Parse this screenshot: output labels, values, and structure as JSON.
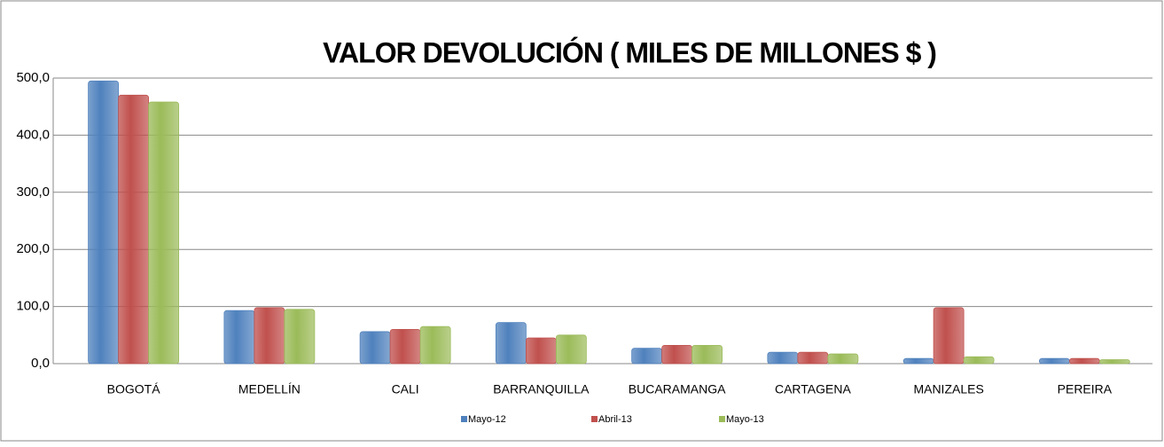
{
  "chart_data": {
    "type": "bar",
    "title": "VALOR DEVOLUCIÓN ( MILES DE MILLONES $ )",
    "categories": [
      "BOGOTÁ",
      "MEDELLÍN",
      "CALI",
      "BARRANQUILLA",
      "BUCARAMANGA",
      "CARTAGENA",
      "MANIZALES",
      "PEREIRA"
    ],
    "series": [
      {
        "name": "Mayo-12",
        "color": "#4f81bd",
        "values": [
          495,
          93,
          56,
          72,
          27,
          20,
          9,
          9
        ]
      },
      {
        "name": "Abril-13",
        "color": "#c0504d",
        "values": [
          470,
          98,
          60,
          45,
          32,
          20,
          98,
          9
        ]
      },
      {
        "name": "Mayo-13",
        "color": "#9bbb59",
        "values": [
          458,
          95,
          65,
          50,
          32,
          17,
          12,
          7
        ]
      }
    ],
    "ylim": [
      0,
      500
    ],
    "yticks": [
      {
        "value": 0,
        "label": "0,0"
      },
      {
        "value": 100,
        "label": "100,0"
      },
      {
        "value": 200,
        "label": "200,0"
      },
      {
        "value": 300,
        "label": "300,0"
      },
      {
        "value": 400,
        "label": "400,0"
      },
      {
        "value": 500,
        "label": "500,0"
      }
    ],
    "grid": true,
    "legend": "bottom"
  }
}
